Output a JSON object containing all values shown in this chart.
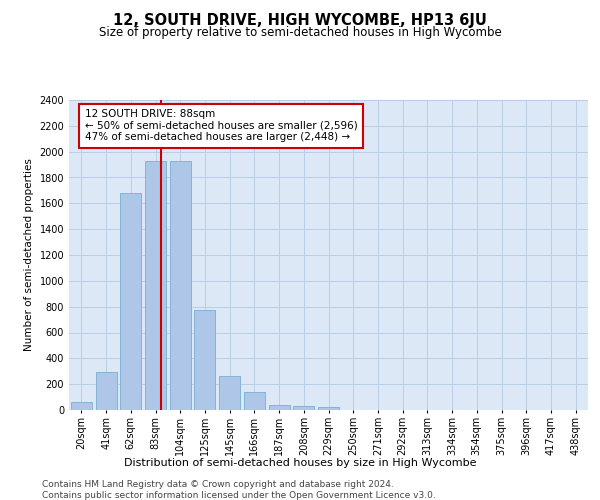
{
  "title": "12, SOUTH DRIVE, HIGH WYCOMBE, HP13 6JU",
  "subtitle": "Size of property relative to semi-detached houses in High Wycombe",
  "xlabel": "Distribution of semi-detached houses by size in High Wycombe",
  "ylabel": "Number of semi-detached properties",
  "footer_line1": "Contains HM Land Registry data © Crown copyright and database right 2024.",
  "footer_line2": "Contains public sector information licensed under the Open Government Licence v3.0.",
  "categories": [
    "20sqm",
    "41sqm",
    "62sqm",
    "83sqm",
    "104sqm",
    "125sqm",
    "145sqm",
    "166sqm",
    "187sqm",
    "208sqm",
    "229sqm",
    "250sqm",
    "271sqm",
    "292sqm",
    "313sqm",
    "334sqm",
    "354sqm",
    "375sqm",
    "396sqm",
    "417sqm",
    "438sqm"
  ],
  "values": [
    60,
    295,
    1680,
    1930,
    1930,
    775,
    260,
    140,
    40,
    30,
    25,
    0,
    0,
    0,
    0,
    0,
    0,
    0,
    0,
    0,
    0
  ],
  "bar_color": "#aec6e8",
  "bar_edge_color": "#7aadd4",
  "vertical_line_color": "#cc0000",
  "annotation_text_line1": "12 SOUTH DRIVE: 88sqm",
  "annotation_text_line2": "← 50% of semi-detached houses are smaller (2,596)",
  "annotation_text_line3": "47% of semi-detached houses are larger (2,448) →",
  "annotation_box_facecolor": "#ffffff",
  "annotation_box_edgecolor": "#cc0000",
  "plot_bg_color": "#dce8f5",
  "fig_bg_color": "#ffffff",
  "grid_color": "#b8cfe8",
  "ylim_max": 2400,
  "yticks": [
    0,
    200,
    400,
    600,
    800,
    1000,
    1200,
    1400,
    1600,
    1800,
    2000,
    2200,
    2400
  ],
  "title_fontsize": 10.5,
  "subtitle_fontsize": 8.5,
  "xlabel_fontsize": 8,
  "ylabel_fontsize": 7.5,
  "tick_fontsize": 7,
  "annotation_fontsize": 7.5,
  "footer_fontsize": 6.5
}
